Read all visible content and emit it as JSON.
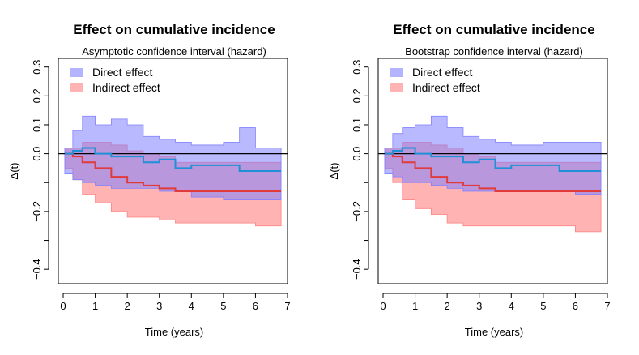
{
  "chart_data": [
    {
      "type": "area",
      "title": "Effect on cumulative incidence",
      "subtitle": "Asymptotic confidence interval (hazard)",
      "xlabel": "Time (years)",
      "ylabel": "Δ(t)",
      "xlim": [
        0,
        7
      ],
      "ylim": [
        -0.45,
        0.33
      ],
      "xticks": [
        0,
        1,
        2,
        3,
        4,
        5,
        6,
        7
      ],
      "yticks": [
        -0.4,
        -0.2,
        0.0,
        0.2
      ],
      "ytick_labels": [
        "−0.4",
        "−0.2",
        "0.0",
        "0.2"
      ],
      "yminor": [
        -0.3,
        -0.1,
        0.1,
        0.3
      ],
      "yminor_labels": [
        "",
        "",
        "0.1",
        "0.3"
      ],
      "reference_line": 0,
      "legend": [
        "Direct effect",
        "Indirect effect"
      ],
      "series": [
        {
          "name": "Direct effect",
          "color": "#1f8fd6",
          "band_color": "#8080ff",
          "t": [
            0.05,
            0.3,
            0.6,
            1.0,
            1.5,
            2.0,
            2.5,
            3.0,
            3.5,
            4.0,
            5.0,
            5.5,
            6.0,
            6.8
          ],
          "estimate": [
            0.0,
            0.01,
            0.02,
            0.0,
            -0.01,
            -0.01,
            -0.03,
            -0.02,
            -0.05,
            -0.04,
            -0.04,
            -0.06,
            -0.06,
            -0.06
          ],
          "lower": [
            -0.02,
            -0.07,
            -0.09,
            -0.1,
            -0.11,
            -0.12,
            -0.12,
            -0.12,
            -0.13,
            -0.13,
            -0.15,
            -0.16,
            -0.16,
            -0.16
          ],
          "upper": [
            0.02,
            0.08,
            0.13,
            0.1,
            0.12,
            0.1,
            0.06,
            0.05,
            0.04,
            0.03,
            0.04,
            0.09,
            0.02,
            0.02
          ]
        },
        {
          "name": "Indirect effect",
          "color": "#e03a3a",
          "band_color": "#ff8080",
          "t": [
            0.05,
            0.3,
            0.6,
            1.0,
            1.5,
            2.0,
            2.5,
            3.0,
            3.5,
            4.0,
            5.0,
            5.5,
            6.0,
            6.8
          ],
          "estimate": [
            0.0,
            -0.01,
            -0.03,
            -0.05,
            -0.08,
            -0.1,
            -0.11,
            -0.12,
            -0.13,
            -0.13,
            -0.13,
            -0.13,
            -0.13,
            -0.13
          ],
          "lower": [
            -0.02,
            -0.05,
            -0.09,
            -0.14,
            -0.17,
            -0.2,
            -0.22,
            -0.22,
            -0.23,
            -0.24,
            -0.24,
            -0.24,
            -0.24,
            -0.25
          ],
          "upper": [
            0.02,
            0.02,
            0.04,
            0.04,
            0.03,
            0.01,
            0.0,
            -0.01,
            -0.03,
            -0.03,
            -0.03,
            -0.03,
            -0.03,
            -0.03
          ]
        }
      ]
    },
    {
      "type": "area",
      "title": "Effect on cumulative incidence",
      "subtitle": "Bootstrap confidence interval (hazard)",
      "xlabel": "Time (years)",
      "ylabel": "Δ(t)",
      "xlim": [
        0,
        7
      ],
      "ylim": [
        -0.45,
        0.33
      ],
      "xticks": [
        0,
        1,
        2,
        3,
        4,
        5,
        6,
        7
      ],
      "yticks": [
        -0.4,
        -0.2,
        0.0,
        0.2
      ],
      "ytick_labels": [
        "−0.4",
        "−0.2",
        "0.0",
        "0.2"
      ],
      "yminor": [
        -0.3,
        -0.1,
        0.1,
        0.3
      ],
      "yminor_labels": [
        "",
        "",
        "0.1",
        "0.3"
      ],
      "reference_line": 0,
      "legend": [
        "Direct effect",
        "Indirect effect"
      ],
      "series": [
        {
          "name": "Direct effect",
          "color": "#1f8fd6",
          "band_color": "#8080ff",
          "t": [
            0.05,
            0.3,
            0.6,
            1.0,
            1.5,
            2.0,
            2.5,
            3.0,
            3.5,
            4.0,
            5.0,
            5.5,
            6.0,
            6.8
          ],
          "estimate": [
            0.0,
            0.01,
            0.02,
            0.0,
            -0.01,
            -0.01,
            -0.03,
            -0.02,
            -0.05,
            -0.04,
            -0.04,
            -0.06,
            -0.06,
            -0.06
          ],
          "lower": [
            -0.02,
            -0.07,
            -0.08,
            -0.1,
            -0.1,
            -0.11,
            -0.12,
            -0.13,
            -0.13,
            -0.13,
            -0.13,
            -0.13,
            -0.13,
            -0.14
          ],
          "upper": [
            0.02,
            0.07,
            0.09,
            0.1,
            0.13,
            0.09,
            0.06,
            0.05,
            0.04,
            0.03,
            0.04,
            0.04,
            0.04,
            0.04
          ]
        },
        {
          "name": "Indirect effect",
          "color": "#e03a3a",
          "band_color": "#ff8080",
          "t": [
            0.05,
            0.3,
            0.6,
            1.0,
            1.5,
            2.0,
            2.5,
            3.0,
            3.5,
            4.0,
            5.0,
            5.5,
            6.0,
            6.8
          ],
          "estimate": [
            0.0,
            -0.01,
            -0.03,
            -0.05,
            -0.08,
            -0.1,
            -0.11,
            -0.12,
            -0.13,
            -0.13,
            -0.13,
            -0.13,
            -0.13,
            -0.13
          ],
          "lower": [
            -0.02,
            -0.05,
            -0.1,
            -0.16,
            -0.19,
            -0.21,
            -0.24,
            -0.25,
            -0.25,
            -0.25,
            -0.25,
            -0.25,
            -0.25,
            -0.27
          ],
          "upper": [
            0.02,
            0.02,
            0.04,
            0.04,
            0.03,
            0.02,
            0.0,
            -0.01,
            -0.03,
            -0.03,
            -0.03,
            -0.03,
            -0.03,
            -0.03
          ]
        }
      ]
    }
  ]
}
